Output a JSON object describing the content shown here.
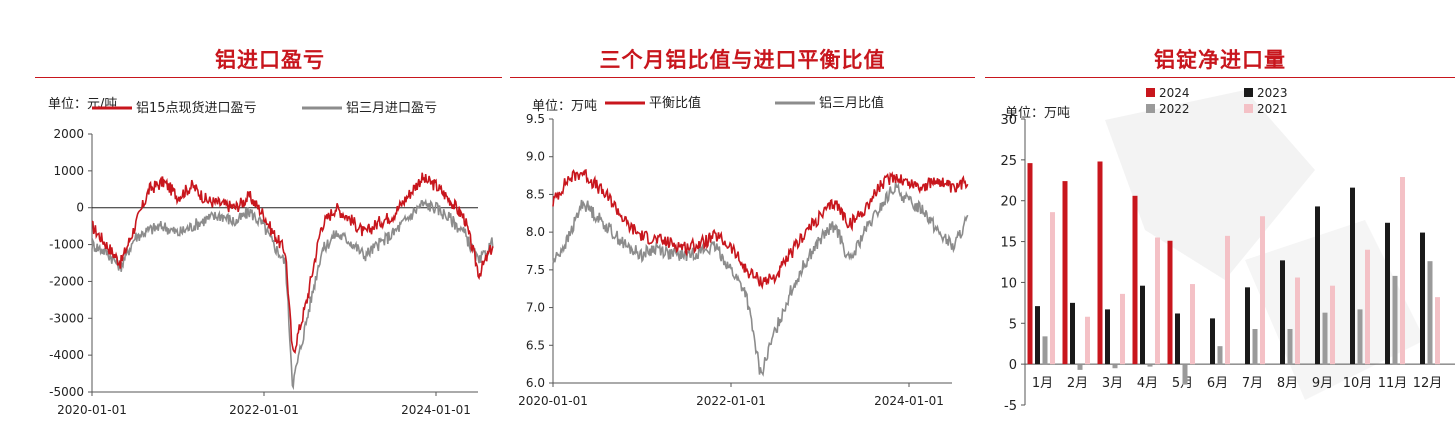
{
  "panels": [
    {
      "title": "铝进口盈亏"
    },
    {
      "title": "三个月铝比值与进口平衡比值"
    },
    {
      "title": "铝锭净进口量"
    }
  ],
  "colors": {
    "red": "#c8161d",
    "gray": "#8c8c8c",
    "black": "#1a1a1a",
    "lightgray": "#9a9a9a",
    "pink": "#f4c1c6",
    "title": "#c8161d"
  },
  "chart_data": [
    {
      "type": "line",
      "unit_label": "单位：元/吨",
      "x_ticks": [
        "2020-01-01",
        "2022-01-01",
        "2024-01-01"
      ],
      "ylim": [
        -5000,
        2000
      ],
      "y_ticks": [
        "2000",
        "1000",
        "0",
        "-1000",
        "-2000",
        "-3000",
        "-4000",
        "-5000"
      ],
      "series": [
        {
          "name": "铝15点现货进口盈亏",
          "color": "#c8161d",
          "points": [
            [
              "2020-01",
              -500
            ],
            [
              "2020-03",
              -1000
            ],
            [
              "2020-05",
              -1500
            ],
            [
              "2020-07",
              -500
            ],
            [
              "2020-09",
              500
            ],
            [
              "2020-11",
              700
            ],
            [
              "2021-01",
              300
            ],
            [
              "2021-03",
              600
            ],
            [
              "2021-05",
              200
            ],
            [
              "2021-07",
              100
            ],
            [
              "2021-09",
              0
            ],
            [
              "2021-11",
              300
            ],
            [
              "2022-01",
              -200
            ],
            [
              "2022-02",
              -600
            ],
            [
              "2022-04",
              -1200
            ],
            [
              "2022-05",
              -4000
            ],
            [
              "2022-07",
              -2500
            ],
            [
              "2022-09",
              -500
            ],
            [
              "2022-11",
              0
            ],
            [
              "2023-01",
              -300
            ],
            [
              "2023-03",
              -700
            ],
            [
              "2023-05",
              -400
            ],
            [
              "2023-07",
              -200
            ],
            [
              "2023-09",
              300
            ],
            [
              "2023-11",
              800
            ],
            [
              "2024-01",
              600
            ],
            [
              "2024-03",
              200
            ],
            [
              "2024-05",
              -300
            ],
            [
              "2024-07",
              -1800
            ],
            [
              "2024-09",
              -1000
            ]
          ]
        },
        {
          "name": "铝三月进口盈亏",
          "color": "#8c8c8c",
          "points": [
            [
              "2020-01",
              -1000
            ],
            [
              "2020-03",
              -1200
            ],
            [
              "2020-05",
              -1600
            ],
            [
              "2020-07",
              -800
            ],
            [
              "2020-09",
              -600
            ],
            [
              "2020-11",
              -500
            ],
            [
              "2021-01",
              -700
            ],
            [
              "2021-03",
              -500
            ],
            [
              "2021-05",
              -300
            ],
            [
              "2021-07",
              -200
            ],
            [
              "2021-09",
              -400
            ],
            [
              "2021-11",
              -100
            ],
            [
              "2022-01",
              -500
            ],
            [
              "2022-02",
              -900
            ],
            [
              "2022-04",
              -1500
            ],
            [
              "2022-05",
              -4800
            ],
            [
              "2022-07",
              -3000
            ],
            [
              "2022-09",
              -1200
            ],
            [
              "2022-11",
              -700
            ],
            [
              "2023-01",
              -900
            ],
            [
              "2023-03",
              -1300
            ],
            [
              "2023-05",
              -1000
            ],
            [
              "2023-07",
              -700
            ],
            [
              "2023-09",
              -300
            ],
            [
              "2023-11",
              100
            ],
            [
              "2024-01",
              0
            ],
            [
              "2024-03",
              -300
            ],
            [
              "2024-05",
              -700
            ],
            [
              "2024-07",
              -1500
            ],
            [
              "2024-09",
              -900
            ]
          ]
        }
      ]
    },
    {
      "type": "line",
      "unit_label": "单位：万吨",
      "x_ticks": [
        "2020-01-01",
        "2022-01-01",
        "2024-01-01"
      ],
      "ylim": [
        6.0,
        9.5
      ],
      "y_ticks": [
        "9.5",
        "9.0",
        "8.5",
        "8.0",
        "7.5",
        "7.0",
        "6.5",
        "6.0"
      ],
      "series": [
        {
          "name": "平衡比值",
          "color": "#c8161d",
          "points": [
            [
              "2020-01",
              8.4
            ],
            [
              "2020-03",
              8.7
            ],
            [
              "2020-05",
              8.8
            ],
            [
              "2020-07",
              8.6
            ],
            [
              "2020-09",
              8.4
            ],
            [
              "2020-11",
              8.1
            ],
            [
              "2021-01",
              7.95
            ],
            [
              "2021-03",
              7.9
            ],
            [
              "2021-05",
              7.85
            ],
            [
              "2021-07",
              7.8
            ],
            [
              "2021-09",
              7.85
            ],
            [
              "2021-11",
              7.95
            ],
            [
              "2022-01",
              7.8
            ],
            [
              "2022-03",
              7.5
            ],
            [
              "2022-05",
              7.35
            ],
            [
              "2022-07",
              7.4
            ],
            [
              "2022-09",
              7.7
            ],
            [
              "2022-11",
              8.0
            ],
            [
              "2023-01",
              8.2
            ],
            [
              "2023-03",
              8.4
            ],
            [
              "2023-05",
              8.1
            ],
            [
              "2023-07",
              8.3
            ],
            [
              "2023-09",
              8.6
            ],
            [
              "2023-11",
              8.75
            ],
            [
              "2024-01",
              8.65
            ],
            [
              "2024-03",
              8.6
            ],
            [
              "2024-05",
              8.7
            ],
            [
              "2024-07",
              8.55
            ],
            [
              "2024-09",
              8.7
            ]
          ]
        },
        {
          "name": "铝三月比值",
          "color": "#8c8c8c",
          "points": [
            [
              "2020-01",
              7.6
            ],
            [
              "2020-03",
              7.9
            ],
            [
              "2020-05",
              8.4
            ],
            [
              "2020-07",
              8.2
            ],
            [
              "2020-09",
              8.0
            ],
            [
              "2020-11",
              7.8
            ],
            [
              "2021-01",
              7.7
            ],
            [
              "2021-03",
              7.8
            ],
            [
              "2021-05",
              7.7
            ],
            [
              "2021-07",
              7.7
            ],
            [
              "2021-09",
              7.75
            ],
            [
              "2021-11",
              7.8
            ],
            [
              "2022-01",
              7.5
            ],
            [
              "2022-03",
              7.2
            ],
            [
              "2022-05",
              6.1
            ],
            [
              "2022-07",
              6.7
            ],
            [
              "2022-09",
              7.2
            ],
            [
              "2022-11",
              7.6
            ],
            [
              "2023-01",
              7.9
            ],
            [
              "2023-03",
              8.1
            ],
            [
              "2023-05",
              7.6
            ],
            [
              "2023-07",
              8.0
            ],
            [
              "2023-09",
              8.3
            ],
            [
              "2023-11",
              8.6
            ],
            [
              "2024-01",
              8.4
            ],
            [
              "2024-03",
              8.3
            ],
            [
              "2024-05",
              8.0
            ],
            [
              "2024-07",
              7.8
            ],
            [
              "2024-09",
              8.2
            ]
          ]
        }
      ]
    },
    {
      "type": "bar",
      "unit_label": "单位：万吨",
      "categories": [
        "1月",
        "2月",
        "3月",
        "4月",
        "5月",
        "6月",
        "7月",
        "8月",
        "9月",
        "10月",
        "11月",
        "12月"
      ],
      "ylim": [
        -5,
        30
      ],
      "y_ticks": [
        "30",
        "25",
        "20",
        "15",
        "10",
        "5",
        "0",
        "-5"
      ],
      "legend_placement": "top-left",
      "series": [
        {
          "name": "2024",
          "color": "#c8161d",
          "values": [
            24.6,
            22.4,
            24.8,
            20.6,
            15.1,
            null,
            null,
            null,
            null,
            null,
            null,
            null
          ]
        },
        {
          "name": "2023",
          "color": "#1a1a1a",
          "values": [
            7.1,
            7.5,
            6.7,
            9.6,
            6.2,
            5.6,
            9.4,
            12.7,
            19.3,
            21.6,
            17.3,
            16.1
          ]
        },
        {
          "name": "2022",
          "color": "#9a9a9a",
          "values": [
            3.4,
            -0.7,
            -0.5,
            -0.3,
            -2.5,
            2.2,
            4.3,
            4.3,
            6.3,
            6.7,
            10.8,
            12.6
          ]
        },
        {
          "name": "2021",
          "color": "#f4c1c6",
          "values": [
            18.6,
            5.8,
            8.6,
            15.5,
            9.8,
            15.7,
            18.1,
            10.6,
            9.6,
            14.0,
            22.9,
            8.2
          ]
        }
      ]
    }
  ]
}
